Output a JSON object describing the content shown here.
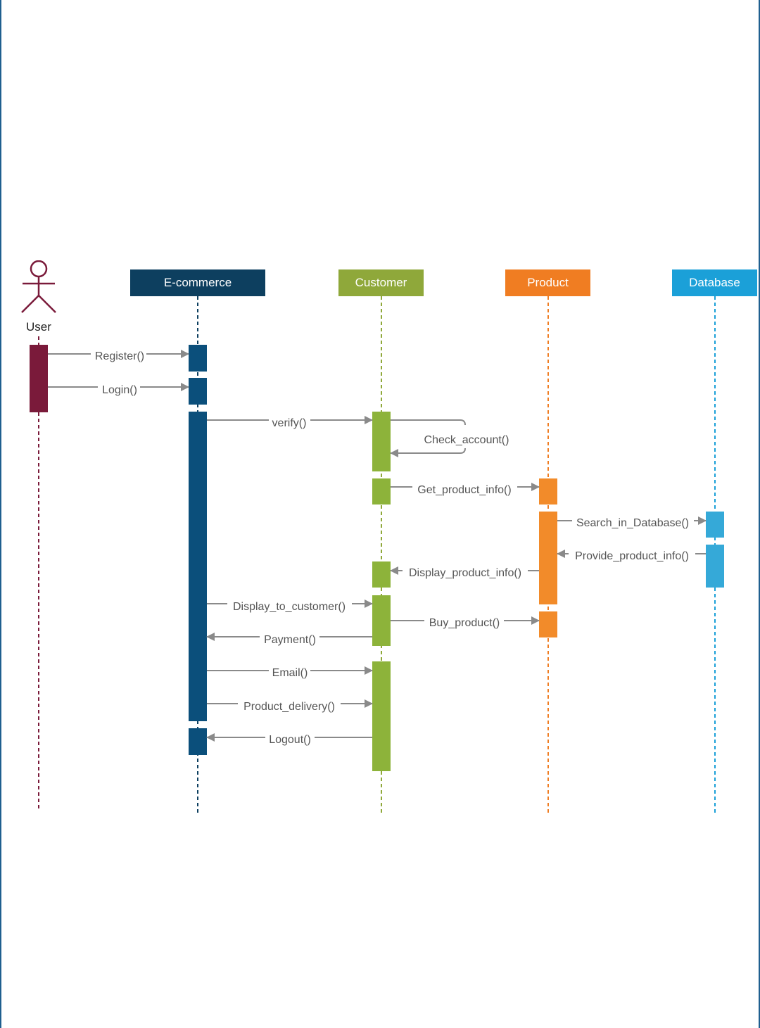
{
  "actor": {
    "label": "User",
    "color": "#7a1a3a"
  },
  "participants": [
    {
      "id": "ecommerce",
      "label": "E-commerce",
      "color": "#0d3f5f",
      "bar_color": "#0b4f7b"
    },
    {
      "id": "customer",
      "label": "Customer",
      "color": "#8fa83a",
      "bar_color": "#8db33a"
    },
    {
      "id": "product",
      "label": "Product",
      "color": "#f07d22",
      "bar_color": "#f28b2a"
    },
    {
      "id": "database",
      "label": "Database",
      "color": "#1ba0d8",
      "bar_color": "#35a9d8"
    }
  ],
  "messages": [
    {
      "label": "Register()",
      "from": "user",
      "to": "ecommerce"
    },
    {
      "label": "Login()",
      "from": "user",
      "to": "ecommerce"
    },
    {
      "label": "verify()",
      "from": "ecommerce",
      "to": "customer"
    },
    {
      "label": "Check_account()",
      "from": "customer",
      "to": "customer"
    },
    {
      "label": "Get_product_info()",
      "from": "customer",
      "to": "product"
    },
    {
      "label": "Search_in_Database()",
      "from": "product",
      "to": "database"
    },
    {
      "label": "Provide_product_info()",
      "from": "database",
      "to": "product"
    },
    {
      "label": "Display_product_info()",
      "from": "product",
      "to": "customer"
    },
    {
      "label": "Display_to_customer()",
      "from": "ecommerce",
      "to": "customer"
    },
    {
      "label": "Buy_product()",
      "from": "customer",
      "to": "product"
    },
    {
      "label": "Payment()",
      "from": "customer",
      "to": "ecommerce"
    },
    {
      "label": "Email()",
      "from": "ecommerce",
      "to": "customer"
    },
    {
      "label": "Product_delivery()",
      "from": "ecommerce",
      "to": "customer"
    },
    {
      "label": "Logout()",
      "from": "customer",
      "to": "ecommerce"
    }
  ],
  "colors": {
    "arrow": "#8a8a8a",
    "text": "#555555"
  }
}
